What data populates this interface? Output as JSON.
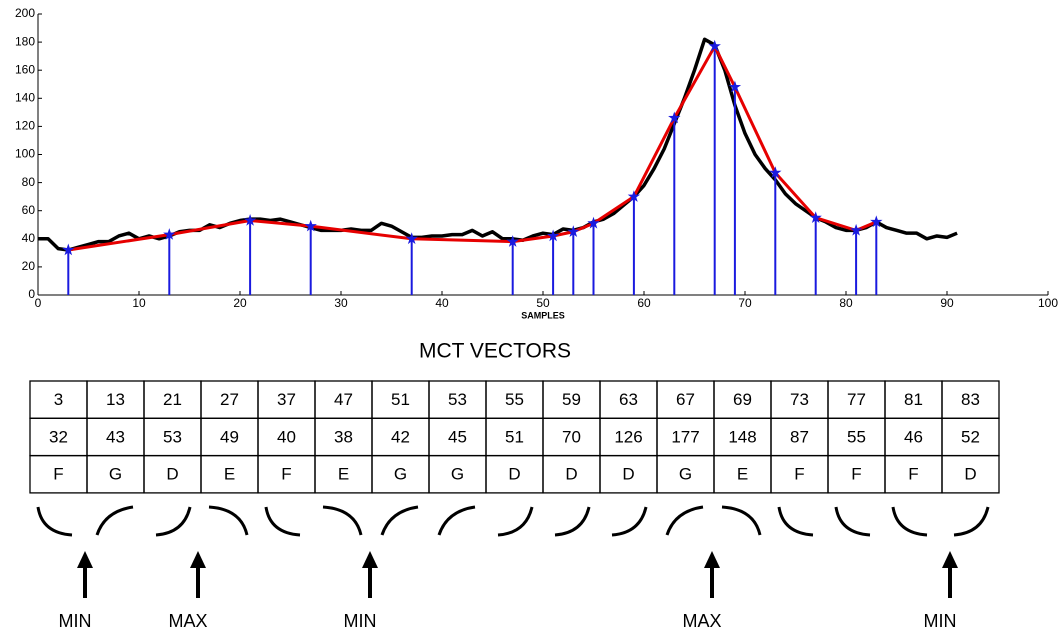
{
  "chart_data": {
    "type": "line",
    "xlabel": "SAMPLES",
    "xlim": [
      0,
      100
    ],
    "ylim": [
      0,
      200
    ],
    "xticks": [
      0,
      10,
      20,
      30,
      40,
      50,
      60,
      70,
      80,
      90,
      100
    ],
    "yticks": [
      0,
      20,
      40,
      60,
      80,
      100,
      120,
      140,
      160,
      180,
      200
    ],
    "series": [
      {
        "color": "#000000",
        "x": [
          0,
          1,
          2,
          3,
          4,
          5,
          6,
          7,
          8,
          9,
          10,
          11,
          12,
          13,
          14,
          15,
          16,
          17,
          18,
          19,
          20,
          21,
          22,
          23,
          24,
          25,
          26,
          27,
          28,
          29,
          30,
          31,
          32,
          33,
          34,
          35,
          36,
          37,
          38,
          39,
          40,
          41,
          42,
          43,
          44,
          45,
          46,
          47,
          48,
          49,
          50,
          51,
          52,
          53,
          54,
          55,
          56,
          57,
          58,
          59,
          60,
          61,
          62,
          63,
          64,
          65,
          66,
          67,
          68,
          69,
          70,
          71,
          72,
          73,
          74,
          75,
          76,
          77,
          78,
          79,
          80,
          81,
          82,
          83,
          84,
          85,
          86,
          87,
          88,
          89,
          90,
          91
        ],
        "values": [
          40,
          40,
          33,
          32,
          34,
          36,
          38,
          38,
          42,
          44,
          40,
          42,
          40,
          42,
          45,
          46,
          46,
          50,
          48,
          51,
          53,
          54,
          54,
          53,
          54,
          52,
          50,
          48,
          46,
          46,
          46,
          47,
          46,
          46,
          51,
          49,
          45,
          41,
          41,
          42,
          42,
          43,
          43,
          46,
          42,
          45,
          40,
          40,
          39,
          42,
          44,
          43,
          47,
          46,
          48,
          52,
          54,
          58,
          64,
          70,
          78,
          90,
          104,
          122,
          140,
          160,
          182,
          178,
          160,
          135,
          115,
          100,
          90,
          82,
          72,
          65,
          60,
          55,
          52,
          48,
          46,
          46,
          48,
          52,
          48,
          46,
          44,
          44,
          40,
          42,
          41,
          44
        ]
      },
      {
        "color": "#e60000",
        "x": [
          3,
          13,
          21,
          27,
          37,
          47,
          51,
          53,
          55,
          59,
          63,
          67,
          69,
          73,
          77,
          81,
          83
        ],
        "values": [
          32,
          43,
          53,
          49,
          40,
          38,
          42,
          45,
          51,
          70,
          126,
          177,
          148,
          87,
          55,
          46,
          52
        ]
      }
    ]
  },
  "table": {
    "title": "MCT VECTORS",
    "rows": [
      [
        3,
        13,
        21,
        27,
        37,
        47,
        51,
        53,
        55,
        59,
        63,
        67,
        69,
        73,
        77,
        81,
        83
      ],
      [
        32,
        43,
        53,
        49,
        40,
        38,
        42,
        45,
        51,
        70,
        126,
        177,
        148,
        87,
        55,
        46,
        52
      ],
      [
        "F",
        "G",
        "D",
        "E",
        "F",
        "E",
        "G",
        "G",
        "D",
        "D",
        "D",
        "G",
        "E",
        "F",
        "F",
        "F",
        "D"
      ]
    ]
  },
  "annotations": [
    "MIN",
    "MAX",
    "MIN",
    "MAX",
    "MIN"
  ]
}
